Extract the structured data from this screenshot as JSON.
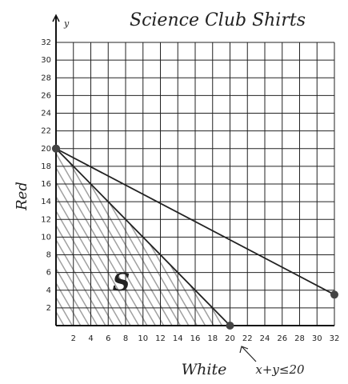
{
  "chart_data": {
    "type": "line",
    "title": "Science Club Shirts",
    "x_label": "White",
    "y_label": "Red",
    "y_axis_letter": "y",
    "annotations": [
      "x+y≤20",
      "S"
    ],
    "xlim": [
      0,
      32
    ],
    "ylim": [
      0,
      32
    ],
    "xticks": [
      2,
      4,
      6,
      8,
      10,
      12,
      14,
      16,
      18,
      20,
      22,
      24,
      26,
      28,
      30,
      32
    ],
    "yticks": [
      2,
      4,
      6,
      8,
      10,
      12,
      14,
      16,
      18,
      20,
      22,
      24,
      26,
      28,
      30,
      32
    ],
    "grid": true,
    "series": [
      {
        "color": "#222222",
        "x": [
          0,
          20
        ],
        "values": [
          20,
          0
        ]
      },
      {
        "color": "#222222",
        "x": [
          0,
          32
        ],
        "values": [
          20,
          3.5
        ]
      }
    ]
  }
}
